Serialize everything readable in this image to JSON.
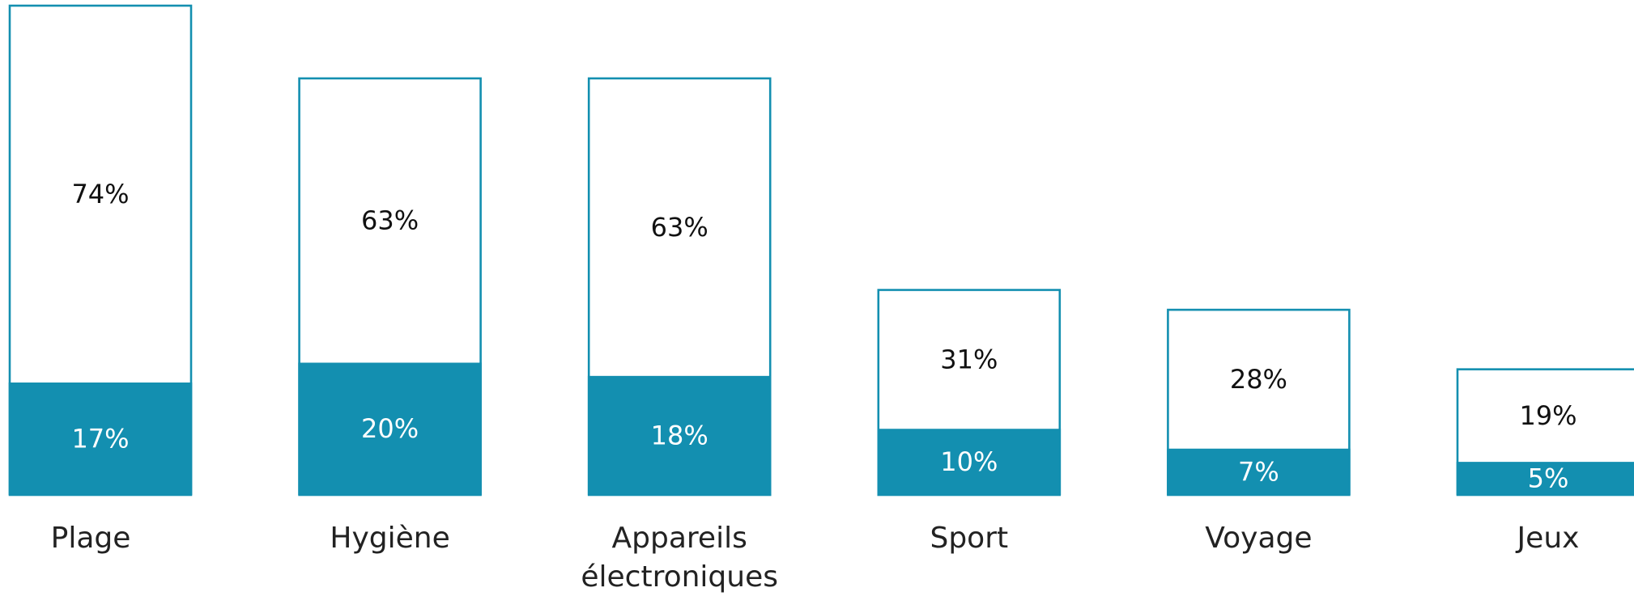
{
  "chart_data": {
    "type": "bar",
    "stacked": false,
    "title": "",
    "xlabel": "",
    "ylabel": "",
    "ylim": [
      0,
      100
    ],
    "categories": [
      "Plage",
      "Hygiène",
      "Appareils\nélectroniques",
      "Sport",
      "Voyage",
      "Jeux"
    ],
    "series": [
      {
        "values": [
          74,
          63,
          63,
          31,
          28,
          19
        ],
        "labels": [
          "74%",
          "63%",
          "63%",
          "31%",
          "28%",
          "19%"
        ],
        "style": "outline"
      },
      {
        "values": [
          17,
          20,
          18,
          10,
          7,
          5
        ],
        "labels": [
          "17%",
          "20%",
          "18%",
          "10%",
          "7%",
          "5%"
        ],
        "style": "filled"
      }
    ],
    "colors": {
      "accent": "#138fb0",
      "outline_fill": "#ffffff",
      "text_dark": "#111111",
      "text_light": "#ffffff"
    },
    "grid": false,
    "legend": "none"
  }
}
